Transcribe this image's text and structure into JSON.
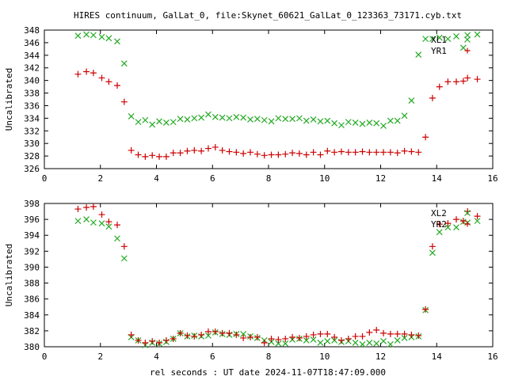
{
  "chart_data": [
    {
      "type": "scatter",
      "title": "HIRES continuum, GalLat_0, file:Skynet_60621_GalLat_0_123363_73171.cyb.txt",
      "xlabel": "",
      "ylabel": "Uncalibrated",
      "xlim": [
        0,
        16
      ],
      "ylim": [
        326,
        348
      ],
      "x_ticks": [
        0,
        2,
        4,
        6,
        8,
        10,
        12,
        14,
        16
      ],
      "y_ticks": [
        326,
        328,
        330,
        332,
        334,
        336,
        338,
        340,
        342,
        344,
        346,
        348
      ],
      "grid": false,
      "legend_position": "top-right",
      "series": [
        {
          "name": "XL1",
          "marker": "x",
          "color": "#22aa22",
          "x": [
            1.2,
            1.5,
            1.75,
            2.05,
            2.3,
            2.6,
            2.85,
            3.1,
            3.35,
            3.6,
            3.85,
            4.1,
            4.35,
            4.6,
            4.85,
            5.1,
            5.35,
            5.6,
            5.85,
            6.1,
            6.35,
            6.6,
            6.85,
            7.1,
            7.35,
            7.6,
            7.85,
            8.1,
            8.35,
            8.6,
            8.85,
            9.1,
            9.35,
            9.6,
            9.85,
            10.1,
            10.35,
            10.6,
            10.85,
            11.1,
            11.35,
            11.6,
            11.85,
            12.1,
            12.35,
            12.6,
            12.85,
            13.1,
            13.35,
            13.6,
            13.85,
            14.1,
            14.4,
            14.7,
            14.95,
            15.1,
            15.45
          ],
          "y": [
            347.1,
            347.3,
            347.2,
            346.9,
            346.7,
            346.2,
            342.7,
            334.3,
            333.4,
            333.7,
            333.0,
            333.5,
            333.3,
            333.4,
            333.9,
            333.8,
            334.0,
            334.1,
            334.6,
            334.2,
            334.1,
            334.0,
            334.2,
            334.1,
            333.8,
            333.9,
            333.7,
            333.5,
            334.0,
            333.9,
            333.9,
            334.0,
            333.6,
            333.8,
            333.5,
            333.6,
            333.2,
            332.9,
            333.4,
            333.3,
            333.1,
            333.3,
            333.2,
            332.8,
            333.6,
            333.6,
            334.4,
            336.8,
            344.1,
            346.6,
            346.6,
            346.8,
            346.6,
            347.0,
            345.2,
            347.2,
            347.3
          ]
        },
        {
          "name": "YR1",
          "marker": "+",
          "color": "#cc0000",
          "x": [
            1.2,
            1.5,
            1.75,
            2.05,
            2.3,
            2.6,
            2.85,
            3.1,
            3.35,
            3.6,
            3.85,
            4.1,
            4.35,
            4.6,
            4.85,
            5.1,
            5.35,
            5.6,
            5.85,
            6.1,
            6.35,
            6.6,
            6.85,
            7.1,
            7.35,
            7.6,
            7.85,
            8.1,
            8.35,
            8.6,
            8.85,
            9.1,
            9.35,
            9.6,
            9.85,
            10.1,
            10.35,
            10.6,
            10.85,
            11.1,
            11.35,
            11.6,
            11.85,
            12.1,
            12.35,
            12.6,
            12.85,
            13.1,
            13.35,
            13.6,
            13.85,
            14.1,
            14.4,
            14.7,
            14.95,
            15.1,
            15.45
          ],
          "y": [
            341.0,
            341.4,
            341.2,
            340.4,
            339.8,
            339.2,
            336.6,
            328.9,
            328.2,
            327.9,
            328.1,
            327.9,
            327.9,
            328.5,
            328.5,
            328.8,
            328.9,
            328.8,
            329.2,
            329.4,
            328.9,
            328.7,
            328.6,
            328.4,
            328.6,
            328.3,
            328.1,
            328.2,
            328.2,
            328.3,
            328.5,
            328.4,
            328.2,
            328.6,
            328.2,
            328.8,
            328.6,
            328.7,
            328.6,
            328.6,
            328.7,
            328.6,
            328.6,
            328.6,
            328.6,
            328.5,
            328.8,
            328.7,
            328.6,
            331.0,
            337.2,
            339.0,
            339.8,
            339.8,
            339.9,
            340.4,
            340.2
          ]
        }
      ]
    },
    {
      "type": "scatter",
      "title": "",
      "xlabel": "rel seconds : UT date 2024-11-07T18:47:09.000",
      "ylabel": "Uncalibrated",
      "xlim": [
        0,
        16
      ],
      "ylim": [
        380,
        398
      ],
      "x_ticks": [
        0,
        2,
        4,
        6,
        8,
        10,
        12,
        14,
        16
      ],
      "y_ticks": [
        380,
        382,
        384,
        386,
        388,
        390,
        392,
        394,
        396,
        398
      ],
      "grid": false,
      "legend_position": "top-right",
      "series": [
        {
          "name": "XL2",
          "marker": "x",
          "color": "#22aa22",
          "x": [
            1.2,
            1.5,
            1.75,
            2.05,
            2.3,
            2.6,
            2.85,
            3.1,
            3.35,
            3.6,
            3.85,
            4.1,
            4.35,
            4.6,
            4.85,
            5.1,
            5.35,
            5.6,
            5.85,
            6.1,
            6.35,
            6.6,
            6.85,
            7.1,
            7.35,
            7.6,
            7.85,
            8.1,
            8.35,
            8.6,
            8.85,
            9.1,
            9.35,
            9.6,
            9.85,
            10.1,
            10.35,
            10.6,
            10.85,
            11.1,
            11.35,
            11.6,
            11.85,
            12.1,
            12.35,
            12.6,
            12.85,
            13.1,
            13.35,
            13.6,
            13.85,
            14.1,
            14.4,
            14.7,
            14.95,
            15.1,
            15.45
          ],
          "y": [
            395.8,
            396.0,
            395.6,
            395.5,
            395.1,
            393.6,
            391.1,
            381.2,
            380.8,
            380.2,
            380.5,
            380.4,
            380.6,
            381.0,
            381.7,
            381.3,
            381.4,
            381.3,
            381.4,
            381.8,
            381.6,
            381.5,
            381.6,
            381.6,
            381.3,
            381.1,
            380.8,
            380.6,
            380.4,
            380.4,
            380.9,
            381.0,
            380.8,
            380.9,
            380.5,
            380.7,
            380.8,
            380.6,
            380.7,
            380.5,
            380.3,
            380.5,
            380.4,
            380.7,
            380.3,
            380.8,
            381.1,
            381.2,
            381.3,
            384.6,
            391.8,
            394.4,
            395.0,
            395.0,
            395.7,
            395.6,
            395.8
          ]
        },
        {
          "name": "YR2",
          "marker": "+",
          "color": "#cc0000",
          "x": [
            1.2,
            1.5,
            1.75,
            2.05,
            2.3,
            2.6,
            2.85,
            3.1,
            3.35,
            3.6,
            3.85,
            4.1,
            4.35,
            4.6,
            4.85,
            5.1,
            5.35,
            5.6,
            5.85,
            6.1,
            6.35,
            6.6,
            6.85,
            7.1,
            7.35,
            7.6,
            7.85,
            8.1,
            8.35,
            8.6,
            8.85,
            9.1,
            9.35,
            9.6,
            9.85,
            10.1,
            10.35,
            10.6,
            10.85,
            11.1,
            11.35,
            11.6,
            11.85,
            12.1,
            12.35,
            12.6,
            12.85,
            13.1,
            13.35,
            13.6,
            13.85,
            14.1,
            14.4,
            14.7,
            14.95,
            15.1,
            15.45
          ],
          "y": [
            397.3,
            397.5,
            397.6,
            396.6,
            395.7,
            395.3,
            392.6,
            381.5,
            380.8,
            380.5,
            380.7,
            380.5,
            380.8,
            381.0,
            381.7,
            381.4,
            381.3,
            381.5,
            381.9,
            381.9,
            381.7,
            381.7,
            381.5,
            381.1,
            381.2,
            381.2,
            380.5,
            381.0,
            380.9,
            381.0,
            381.2,
            381.1,
            381.3,
            381.5,
            381.6,
            381.6,
            381.2,
            380.8,
            381.0,
            381.3,
            381.3,
            381.8,
            382.1,
            381.7,
            381.6,
            381.6,
            381.6,
            381.5,
            381.4,
            384.7,
            392.6,
            395.4,
            395.5,
            396.0,
            395.8,
            397.0,
            396.4
          ]
        }
      ]
    }
  ]
}
